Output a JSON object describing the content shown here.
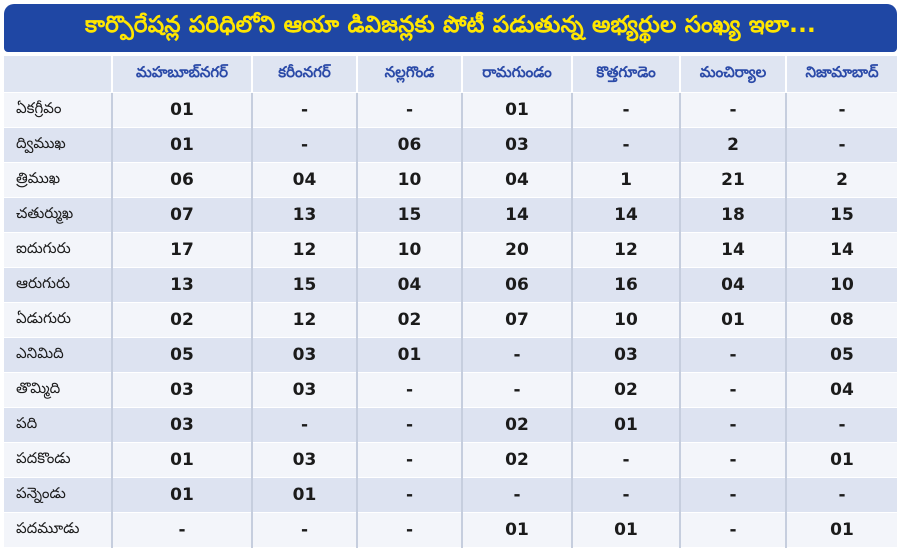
{
  "title": "కార్పొరేషన్ల పరిధిలోని ఆయా డివిజన్లకు పోటీ పడుతున్న అభ్యర్థుల సంఖ్య ఇలా...",
  "columns": [
    "మహబూబ్‌నగర్",
    "కరీంనగర్",
    "నల్లగొండ",
    "రామగుండం",
    "కొత్తగూడెం",
    "మంచిర్యాల",
    "నిజామాబాద్"
  ],
  "rows": [
    {
      "label": "ఏకగ్రీవం",
      "values": [
        "01",
        "-",
        "-",
        "01",
        "-",
        "-",
        "-"
      ]
    },
    {
      "label": "ద్విముఖ",
      "values": [
        "01",
        "-",
        "06",
        "03",
        "-",
        "2",
        "-"
      ]
    },
    {
      "label": "త్రిముఖ",
      "values": [
        "06",
        "04",
        "10",
        "04",
        "1",
        "21",
        "2"
      ]
    },
    {
      "label": "చతుర్ముఖ",
      "values": [
        "07",
        "13",
        "15",
        "14",
        "14",
        "18",
        "15"
      ]
    },
    {
      "label": "ఐదుగురు",
      "values": [
        "17",
        "12",
        "10",
        "20",
        "12",
        "14",
        "14"
      ]
    },
    {
      "label": "ఆరుగురు",
      "values": [
        "13",
        "15",
        "04",
        "06",
        "16",
        "04",
        "10"
      ]
    },
    {
      "label": "ఏడుగురు",
      "values": [
        "02",
        "12",
        "02",
        "07",
        "10",
        "01",
        "08"
      ]
    },
    {
      "label": "ఎనిమిది",
      "values": [
        "05",
        "03",
        "01",
        "-",
        "03",
        "-",
        "05"
      ]
    },
    {
      "label": "తొమ్మిది",
      "values": [
        "03",
        "03",
        "-",
        "-",
        "02",
        "-",
        "04"
      ]
    },
    {
      "label": "పది",
      "values": [
        "03",
        "-",
        "-",
        "02",
        "01",
        "-",
        "-"
      ]
    },
    {
      "label": "పదకొండు",
      "values": [
        "01",
        "03",
        "-",
        "02",
        "-",
        "-",
        "01"
      ]
    },
    {
      "label": "పన్నెండు",
      "values": [
        "01",
        "01",
        "-",
        "-",
        "-",
        "-",
        "-"
      ]
    },
    {
      "label": "పదమూడు",
      "values": [
        "-",
        "-",
        "-",
        "01",
        "01",
        "-",
        "01"
      ]
    }
  ]
}
